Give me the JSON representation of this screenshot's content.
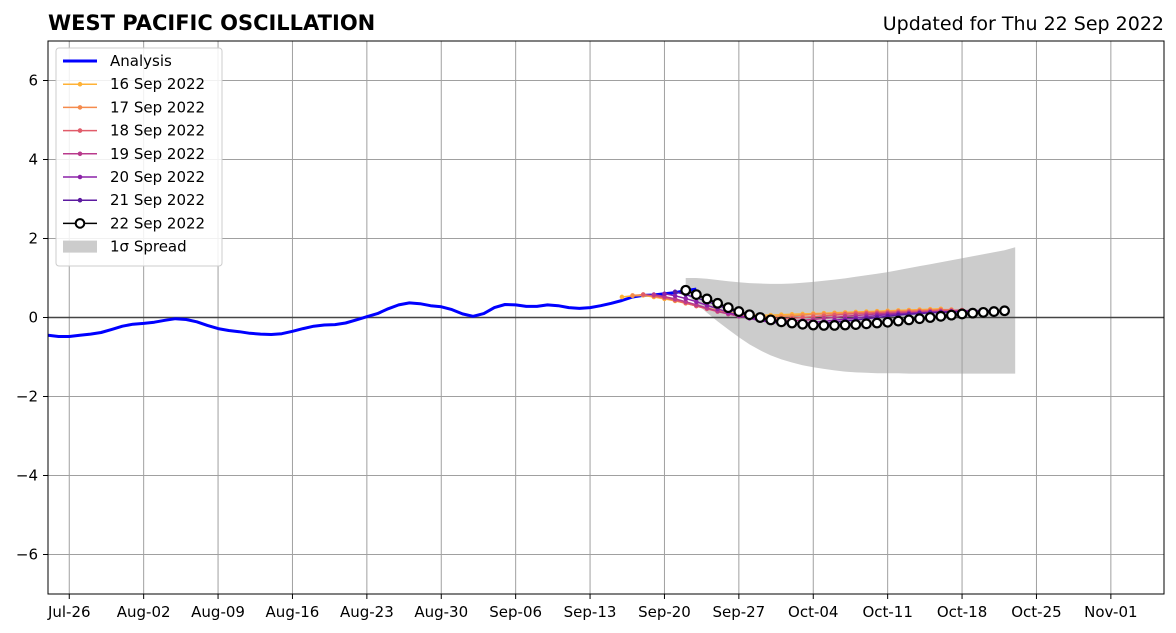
{
  "chart_data": {
    "type": "line",
    "title": "WEST PACIFIC OSCILLATION",
    "subtitle": "Updated for Thu 22 Sep 2022",
    "xlabel": "",
    "ylabel": "",
    "ylim": [
      -7,
      7
    ],
    "xlim": [
      "2022-07-24",
      "2022-11-06"
    ],
    "grid": true,
    "legend_position": "top-left",
    "x_ticks": [
      "2022-07-26",
      "2022-08-02",
      "2022-08-09",
      "2022-08-16",
      "2022-08-23",
      "2022-08-30",
      "2022-09-06",
      "2022-09-13",
      "2022-09-20",
      "2022-09-27",
      "2022-10-04",
      "2022-10-11",
      "2022-10-18",
      "2022-10-25",
      "2022-11-01"
    ],
    "x_tick_labels": [
      "Jul-26",
      "Aug-02",
      "Aug-09",
      "Aug-16",
      "Aug-23",
      "Aug-30",
      "Sep-06",
      "Sep-13",
      "Sep-20",
      "Sep-27",
      "Oct-04",
      "Oct-11",
      "Oct-18",
      "Oct-25",
      "Nov-01"
    ],
    "y_ticks": [
      -6,
      -4,
      -2,
      0,
      2,
      4,
      6
    ],
    "y_tick_labels": [
      "−6",
      "−4",
      "−2",
      "0",
      "2",
      "4",
      "6"
    ],
    "analysis": {
      "name": "Analysis",
      "color": "#0000ff",
      "start_date": "2022-07-24",
      "values": [
        -0.45,
        -0.48,
        -0.48,
        -0.45,
        -0.42,
        -0.38,
        -0.3,
        -0.22,
        -0.17,
        -0.15,
        -0.12,
        -0.07,
        -0.03,
        -0.05,
        -0.11,
        -0.2,
        -0.28,
        -0.33,
        -0.36,
        -0.4,
        -0.42,
        -0.43,
        -0.41,
        -0.35,
        -0.28,
        -0.22,
        -0.19,
        -0.18,
        -0.14,
        -0.06,
        0.02,
        0.1,
        0.22,
        0.32,
        0.37,
        0.35,
        0.3,
        0.27,
        0.2,
        0.09,
        0.03,
        0.1,
        0.25,
        0.33,
        0.32,
        0.28,
        0.28,
        0.32,
        0.3,
        0.25,
        0.23,
        0.25,
        0.3,
        0.36,
        0.43,
        0.52,
        0.56,
        0.57,
        0.6,
        0.63,
        0.68,
        0.72
      ]
    },
    "forecasts": [
      {
        "name": "16 Sep 2022",
        "color": "#ffb236",
        "start_date": "2022-09-16",
        "values": [
          0.52,
          0.55,
          0.56,
          0.52,
          0.47,
          0.42,
          0.36,
          0.3,
          0.24,
          0.18,
          0.13,
          0.09,
          0.07,
          0.06,
          0.06,
          0.07,
          0.08,
          0.09,
          0.1,
          0.11,
          0.12,
          0.13,
          0.14,
          0.15,
          0.16,
          0.17,
          0.18,
          0.19,
          0.2,
          0.21,
          0.22
        ]
      },
      {
        "name": "17 Sep 2022",
        "color": "#f58b4d",
        "start_date": "2022-09-17",
        "values": [
          0.56,
          0.58,
          0.54,
          0.49,
          0.43,
          0.36,
          0.29,
          0.22,
          0.16,
          0.1,
          0.06,
          0.03,
          0.02,
          0.02,
          0.03,
          0.04,
          0.06,
          0.08,
          0.09,
          0.1,
          0.11,
          0.12,
          0.13,
          0.14,
          0.15,
          0.16,
          0.17,
          0.18,
          0.19,
          0.2,
          0.2
        ]
      },
      {
        "name": "18 Sep 2022",
        "color": "#e15c6a",
        "start_date": "2022-09-18",
        "values": [
          0.58,
          0.55,
          0.5,
          0.44,
          0.37,
          0.29,
          0.22,
          0.15,
          0.09,
          0.04,
          0.0,
          -0.02,
          -0.03,
          -0.03,
          -0.02,
          0.0,
          0.02,
          0.04,
          0.06,
          0.08,
          0.1,
          0.11,
          0.12,
          0.13,
          0.14,
          0.15,
          0.16,
          0.17,
          0.18,
          0.18,
          0.19
        ]
      },
      {
        "name": "19 Sep 2022",
        "color": "#b93a8c",
        "start_date": "2022-09-19",
        "values": [
          0.58,
          0.53,
          0.47,
          0.4,
          0.32,
          0.24,
          0.16,
          0.09,
          0.03,
          -0.02,
          -0.06,
          -0.08,
          -0.09,
          -0.08,
          -0.07,
          -0.05,
          -0.02,
          0.0,
          0.03,
          0.05,
          0.07,
          0.09,
          0.1,
          0.11,
          0.12,
          0.13,
          0.14,
          0.15,
          0.16,
          0.17,
          0.18
        ]
      },
      {
        "name": "20 Sep 2022",
        "color": "#8c22a8",
        "start_date": "2022-09-20",
        "values": [
          0.6,
          0.55,
          0.48,
          0.4,
          0.31,
          0.22,
          0.13,
          0.05,
          -0.02,
          -0.08,
          -0.12,
          -0.14,
          -0.15,
          -0.14,
          -0.12,
          -0.1,
          -0.07,
          -0.04,
          -0.01,
          0.02,
          0.05,
          0.07,
          0.09,
          0.1,
          0.12,
          0.13,
          0.14,
          0.15,
          0.16,
          0.17,
          0.18
        ]
      },
      {
        "name": "21 Sep 2022",
        "color": "#5c1aa0",
        "start_date": "2022-09-21",
        "values": [
          0.65,
          0.58,
          0.5,
          0.41,
          0.31,
          0.21,
          0.12,
          0.03,
          -0.05,
          -0.11,
          -0.15,
          -0.17,
          -0.18,
          -0.17,
          -0.15,
          -0.12,
          -0.09,
          -0.06,
          -0.03,
          0.0,
          0.03,
          0.06,
          0.08,
          0.1,
          0.12,
          0.13,
          0.14,
          0.15,
          0.16,
          0.17,
          0.18
        ]
      }
    ],
    "current_forecast": {
      "name": "22 Sep 2022",
      "color": "#000000",
      "marker_fill": "#ffffff",
      "start_date": "2022-09-22",
      "values": [
        0.69,
        0.58,
        0.47,
        0.36,
        0.25,
        0.15,
        0.07,
        0.0,
        -0.06,
        -0.11,
        -0.14,
        -0.17,
        -0.19,
        -0.2,
        -0.2,
        -0.19,
        -0.18,
        -0.16,
        -0.14,
        -0.12,
        -0.09,
        -0.06,
        -0.03,
        0.0,
        0.03,
        0.06,
        0.09,
        0.11,
        0.13,
        0.15,
        0.17
      ]
    },
    "spread": {
      "name": "1σ Spread",
      "color": "#cccccc",
      "start_date": "2022-09-22",
      "upper": [
        1.0,
        1.0,
        0.98,
        0.95,
        0.92,
        0.89,
        0.87,
        0.86,
        0.85,
        0.85,
        0.86,
        0.88,
        0.9,
        0.93,
        0.96,
        0.99,
        1.03,
        1.07,
        1.11,
        1.15,
        1.2,
        1.25,
        1.3,
        1.35,
        1.4,
        1.45,
        1.5,
        1.55,
        1.6,
        1.65,
        1.7,
        1.78
      ],
      "lower": [
        0.6,
        0.35,
        0.12,
        -0.1,
        -0.3,
        -0.5,
        -0.68,
        -0.83,
        -0.96,
        -1.06,
        -1.14,
        -1.21,
        -1.26,
        -1.3,
        -1.34,
        -1.37,
        -1.39,
        -1.4,
        -1.41,
        -1.41,
        -1.41,
        -1.42,
        -1.42,
        -1.42,
        -1.42,
        -1.42,
        -1.42,
        -1.42,
        -1.42,
        -1.42,
        -1.42,
        -1.42
      ]
    }
  }
}
